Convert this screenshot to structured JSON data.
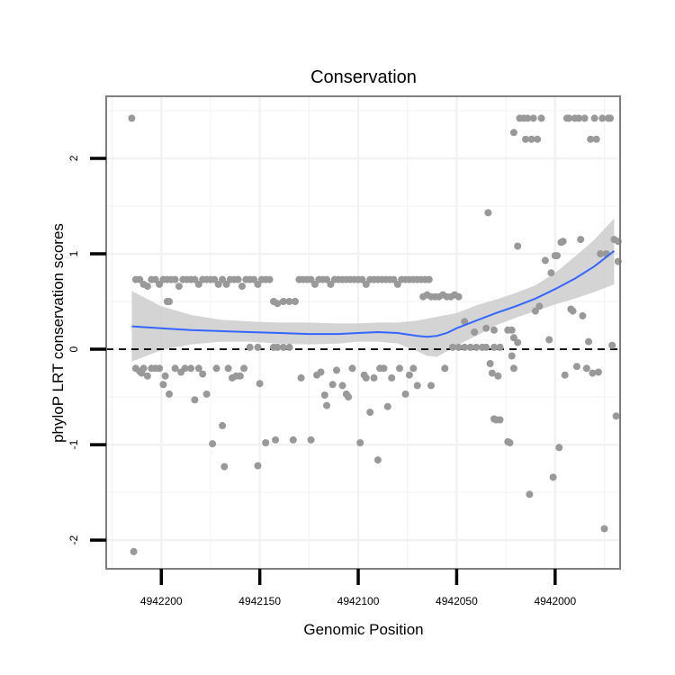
{
  "chart_data": {
    "type": "scatter",
    "title": "Conservation",
    "xlabel": "Genomic Position",
    "ylabel": "phyloP LRT conservation scores",
    "x_reversed": true,
    "xlim": [
      4942228,
      4941967
    ],
    "ylim": [
      -2.3,
      2.65
    ],
    "x_ticks": [
      4942200,
      4942150,
      4942100,
      4942050,
      4942000
    ],
    "y_ticks": [
      -2,
      -1,
      0,
      1,
      2
    ],
    "grid": true,
    "reference_line": {
      "y": 0,
      "style": "dashed"
    },
    "colors": {
      "points": "#999999",
      "smooth_line": "#3366ff",
      "confidence_band": "#cccccc",
      "panel_border": "#7f7f7f",
      "grid": "#f2f2f2"
    },
    "points": [
      [
        4942215,
        2.42
      ],
      [
        4942214,
        -2.12
      ],
      [
        4942213,
        0.73
      ],
      [
        4942211,
        0.73
      ],
      [
        4942209,
        0.68
      ],
      [
        4942207,
        0.66
      ],
      [
        4942205,
        0.73
      ],
      [
        4942203,
        0.73
      ],
      [
        4942201,
        0.68
      ],
      [
        4942199,
        0.73
      ],
      [
        4942197,
        0.73
      ],
      [
        4942195,
        0.73
      ],
      [
        4942193,
        0.73
      ],
      [
        4942191,
        0.66
      ],
      [
        4942189,
        0.73
      ],
      [
        4942187,
        0.73
      ],
      [
        4942185,
        0.73
      ],
      [
        4942183,
        0.73
      ],
      [
        4942181,
        0.68
      ],
      [
        4942179,
        0.73
      ],
      [
        4942177,
        0.73
      ],
      [
        4942175,
        0.73
      ],
      [
        4942173,
        0.73
      ],
      [
        4942171,
        0.68
      ],
      [
        4942169,
        0.73
      ],
      [
        4942167,
        0.68
      ],
      [
        4942165,
        0.73
      ],
      [
        4942163,
        0.73
      ],
      [
        4942161,
        0.73
      ],
      [
        4942159,
        0.66
      ],
      [
        4942157,
        0.73
      ],
      [
        4942155,
        0.73
      ],
      [
        4942153,
        0.73
      ],
      [
        4942151,
        0.68
      ],
      [
        4942149,
        0.73
      ],
      [
        4942147,
        0.73
      ],
      [
        4942145,
        0.73
      ],
      [
        4942197,
        0.5
      ],
      [
        4942196,
        0.5
      ],
      [
        4942143,
        0.5
      ],
      [
        4942141,
        0.48
      ],
      [
        4942138,
        0.5
      ],
      [
        4942135,
        0.5
      ],
      [
        4942132,
        0.5
      ],
      [
        4942130,
        0.73
      ],
      [
        4942128,
        0.73
      ],
      [
        4942126,
        0.73
      ],
      [
        4942124,
        0.73
      ],
      [
        4942122,
        0.68
      ],
      [
        4942120,
        0.73
      ],
      [
        4942118,
        0.73
      ],
      [
        4942116,
        0.73
      ],
      [
        4942114,
        0.68
      ],
      [
        4942112,
        0.73
      ],
      [
        4942110,
        0.73
      ],
      [
        4942108,
        0.73
      ],
      [
        4942106,
        0.73
      ],
      [
        4942104,
        0.73
      ],
      [
        4942102,
        0.73
      ],
      [
        4942100,
        0.73
      ],
      [
        4942098,
        0.73
      ],
      [
        4942096,
        0.68
      ],
      [
        4942094,
        0.73
      ],
      [
        4942092,
        0.73
      ],
      [
        4942090,
        0.73
      ],
      [
        4942088,
        0.73
      ],
      [
        4942086,
        0.73
      ],
      [
        4942084,
        0.73
      ],
      [
        4942082,
        0.73
      ],
      [
        4942080,
        0.68
      ],
      [
        4942078,
        0.73
      ],
      [
        4942076,
        0.73
      ],
      [
        4942074,
        0.73
      ],
      [
        4942072,
        0.73
      ],
      [
        4942070,
        0.73
      ],
      [
        4942068,
        0.73
      ],
      [
        4942066,
        0.73
      ],
      [
        4942064,
        0.73
      ],
      [
        4942067,
        0.55
      ],
      [
        4942065,
        0.57
      ],
      [
        4942063,
        0.55
      ],
      [
        4942061,
        0.55
      ],
      [
        4942059,
        0.55
      ],
      [
        4942057,
        0.57
      ],
      [
        4942055,
        0.55
      ],
      [
        4942053,
        0.55
      ],
      [
        4942051,
        0.57
      ],
      [
        4942049,
        0.55
      ],
      [
        4942155,
        0.02
      ],
      [
        4942151,
        0.02
      ],
      [
        4942143,
        0.02
      ],
      [
        4942141,
        0.02
      ],
      [
        4942138,
        0.02
      ],
      [
        4942135,
        0.02
      ],
      [
        4942052,
        0.02
      ],
      [
        4942049,
        0.02
      ],
      [
        4942046,
        0.02
      ],
      [
        4942043,
        0.02
      ],
      [
        4942040,
        0.02
      ],
      [
        4942037,
        0.02
      ],
      [
        4942035,
        0.02
      ],
      [
        4942031,
        0.02
      ],
      [
        4942028,
        0.02
      ],
      [
        4942046,
        0.29
      ],
      [
        4942041,
        0.18
      ],
      [
        4942035,
        0.22
      ],
      [
        4942031,
        0.2
      ],
      [
        4942024,
        0.2
      ],
      [
        4942022,
        0.2
      ],
      [
        4942021,
        0.12
      ],
      [
        4942019,
        0.07
      ],
      [
        4942213,
        -0.2
      ],
      [
        4942211,
        -0.23
      ],
      [
        4942210,
        -0.25
      ],
      [
        4942209,
        -0.2
      ],
      [
        4942207,
        -0.28
      ],
      [
        4942205,
        -0.2
      ],
      [
        4942203,
        -0.2
      ],
      [
        4942201,
        -0.2
      ],
      [
        4942199,
        -0.37
      ],
      [
        4942198,
        -0.28
      ],
      [
        4942196,
        -0.47
      ],
      [
        4942193,
        -0.2
      ],
      [
        4942190,
        -0.24
      ],
      [
        4942188,
        -0.2
      ],
      [
        4942185,
        -0.2
      ],
      [
        4942183,
        -0.53
      ],
      [
        4942181,
        -0.2
      ],
      [
        4942179,
        -0.26
      ],
      [
        4942177,
        -0.47
      ],
      [
        4942174,
        -0.99
      ],
      [
        4942172,
        -0.2
      ],
      [
        4942169,
        -0.8
      ],
      [
        4942168,
        -1.23
      ],
      [
        4942166,
        -0.2
      ],
      [
        4942164,
        -0.3
      ],
      [
        4942162,
        -0.28
      ],
      [
        4942160,
        -0.28
      ],
      [
        4942158,
        -0.2
      ],
      [
        4942151,
        -1.22
      ],
      [
        4942150,
        -0.36
      ],
      [
        4942147,
        -0.98
      ],
      [
        4942142,
        -0.95
      ],
      [
        4942133,
        -0.95
      ],
      [
        4942129,
        -0.3
      ],
      [
        4942124,
        -0.95
      ],
      [
        4942121,
        -0.27
      ],
      [
        4942119,
        -0.24
      ],
      [
        4942117,
        -0.48
      ],
      [
        4942116,
        -0.59
      ],
      [
        4942113,
        -0.37
      ],
      [
        4942111,
        -0.22
      ],
      [
        4942108,
        -0.38
      ],
      [
        4942106,
        -0.47
      ],
      [
        4942105,
        -0.5
      ],
      [
        4942103,
        -0.2
      ],
      [
        4942099,
        -0.98
      ],
      [
        4942097,
        -0.27
      ],
      [
        4942096,
        -0.3
      ],
      [
        4942094,
        -0.66
      ],
      [
        4942092,
        -0.3
      ],
      [
        4942090,
        -1.16
      ],
      [
        4942089,
        -0.2
      ],
      [
        4942087,
        -0.2
      ],
      [
        4942085,
        -0.6
      ],
      [
        4942083,
        -0.3
      ],
      [
        4942079,
        -0.2
      ],
      [
        4942076,
        -0.47
      ],
      [
        4942074,
        -0.27
      ],
      [
        4942072,
        -0.2
      ],
      [
        4942070,
        -0.38
      ],
      [
        4942063,
        -0.38
      ],
      [
        4942056,
        -0.2
      ],
      [
        4942034,
        1.43
      ],
      [
        4942033,
        -0.15
      ],
      [
        4942032,
        -0.25
      ],
      [
        4942031,
        -0.73
      ],
      [
        4942030,
        -0.74
      ],
      [
        4942029,
        -0.28
      ],
      [
        4942028,
        -0.74
      ],
      [
        4942024,
        -0.97
      ],
      [
        4942023,
        -0.98
      ],
      [
        4942022,
        -0.07
      ],
      [
        4942021,
        -0.2
      ],
      [
        4942021,
        2.27
      ],
      [
        4942019,
        1.08
      ],
      [
        4942018,
        2.42
      ],
      [
        4942016,
        2.42
      ],
      [
        4942015,
        2.2
      ],
      [
        4942014,
        2.42
      ],
      [
        4942013,
        -1.52
      ],
      [
        4942012,
        2.2
      ],
      [
        4942011,
        2.42
      ],
      [
        4942010,
        0.4
      ],
      [
        4942009,
        2.2
      ],
      [
        4942008,
        0.45
      ],
      [
        4942007,
        2.42
      ],
      [
        4942005,
        0.93
      ],
      [
        4942003,
        0.1
      ],
      [
        4942002,
        0.8
      ],
      [
        4942001,
        -1.34
      ],
      [
        4942000,
        0.98
      ],
      [
        4941999,
        0.98
      ],
      [
        4941998,
        -1.03
      ],
      [
        4941997,
        1.12
      ],
      [
        4941996,
        1.13
      ],
      [
        4941995,
        -0.27
      ],
      [
        4941994,
        2.42
      ],
      [
        4941993,
        2.42
      ],
      [
        4941992,
        0.42
      ],
      [
        4941991,
        0.4
      ],
      [
        4941990,
        2.42
      ],
      [
        4941989,
        -0.18
      ],
      [
        4941988,
        2.42
      ],
      [
        4941987,
        1.15
      ],
      [
        4941986,
        0.35
      ],
      [
        4941985,
        2.42
      ],
      [
        4941984,
        -0.2
      ],
      [
        4941983,
        0.08
      ],
      [
        4941982,
        2.2
      ],
      [
        4941981,
        -0.25
      ],
      [
        4941980,
        2.42
      ],
      [
        4941979,
        2.2
      ],
      [
        4941978,
        -0.24
      ],
      [
        4941977,
        1.0
      ],
      [
        4941976,
        2.42
      ],
      [
        4941975,
        -1.88
      ],
      [
        4941974,
        1.0
      ],
      [
        4941973,
        2.42
      ],
      [
        4941972,
        2.42
      ],
      [
        4941971,
        0.04
      ],
      [
        4941970,
        1.15
      ],
      [
        4941969,
        -0.7
      ],
      [
        4941968,
        1.13
      ],
      [
        4941968,
        0.92
      ]
    ],
    "smooth_line": {
      "x": [
        4942215,
        4942200,
        4942185,
        4942170,
        4942155,
        4942140,
        4942125,
        4942110,
        4942100,
        4942090,
        4942080,
        4942070,
        4942065,
        4942060,
        4942055,
        4942050,
        4942040,
        4942030,
        4942020,
        4942010,
        4942000,
        4941990,
        4941980,
        4941970
      ],
      "y": [
        0.24,
        0.22,
        0.2,
        0.19,
        0.18,
        0.17,
        0.16,
        0.16,
        0.17,
        0.18,
        0.17,
        0.14,
        0.13,
        0.14,
        0.17,
        0.22,
        0.3,
        0.38,
        0.45,
        0.53,
        0.63,
        0.74,
        0.87,
        1.03
      ],
      "lower": [
        -0.13,
        -0.01,
        0.05,
        0.08,
        0.08,
        0.06,
        0.05,
        0.06,
        0.08,
        0.08,
        0.06,
        -0.02,
        -0.07,
        -0.08,
        -0.02,
        0.04,
        0.14,
        0.25,
        0.33,
        0.4,
        0.47,
        0.53,
        0.6,
        0.68
      ],
      "upper": [
        0.61,
        0.45,
        0.36,
        0.31,
        0.29,
        0.28,
        0.28,
        0.27,
        0.27,
        0.28,
        0.28,
        0.3,
        0.32,
        0.34,
        0.36,
        0.38,
        0.46,
        0.52,
        0.59,
        0.67,
        0.8,
        0.97,
        1.15,
        1.37
      ]
    }
  }
}
